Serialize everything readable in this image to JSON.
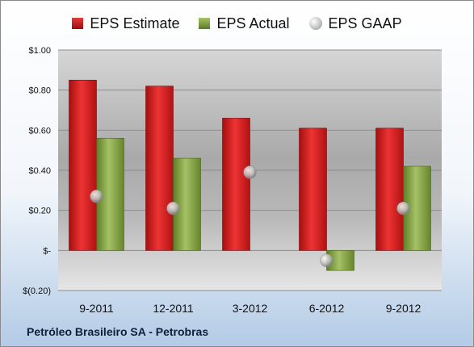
{
  "footer": {
    "company": "Petróleo Brasileiro SA - Petrobras"
  },
  "chart_data": {
    "type": "bar",
    "categories": [
      "9-2011",
      "12-2011",
      "3-2012",
      "6-2012",
      "9-2012"
    ],
    "series": [
      {
        "name": "EPS Estimate",
        "kind": "bar",
        "color": "#c8191b",
        "values": [
          0.85,
          0.82,
          0.66,
          0.61,
          0.61
        ]
      },
      {
        "name": "EPS Actual",
        "kind": "bar",
        "color": "#7f9a3e",
        "values": [
          0.56,
          0.46,
          null,
          -0.1,
          0.42
        ]
      },
      {
        "name": "EPS GAAP",
        "kind": "marker",
        "color": "#c0c0c0",
        "values": [
          0.27,
          0.21,
          0.39,
          -0.05,
          0.21
        ]
      }
    ],
    "ylim": [
      -0.2,
      1.0
    ],
    "yticks": [
      -0.2,
      0.0,
      0.2,
      0.4,
      0.6,
      0.8,
      1.0
    ],
    "ytick_labels": [
      "$(0.20)",
      "$-",
      "$0.20",
      "$0.40",
      "$0.60",
      "$0.80",
      "$1.00"
    ],
    "grid": true,
    "legend_position": "top"
  }
}
